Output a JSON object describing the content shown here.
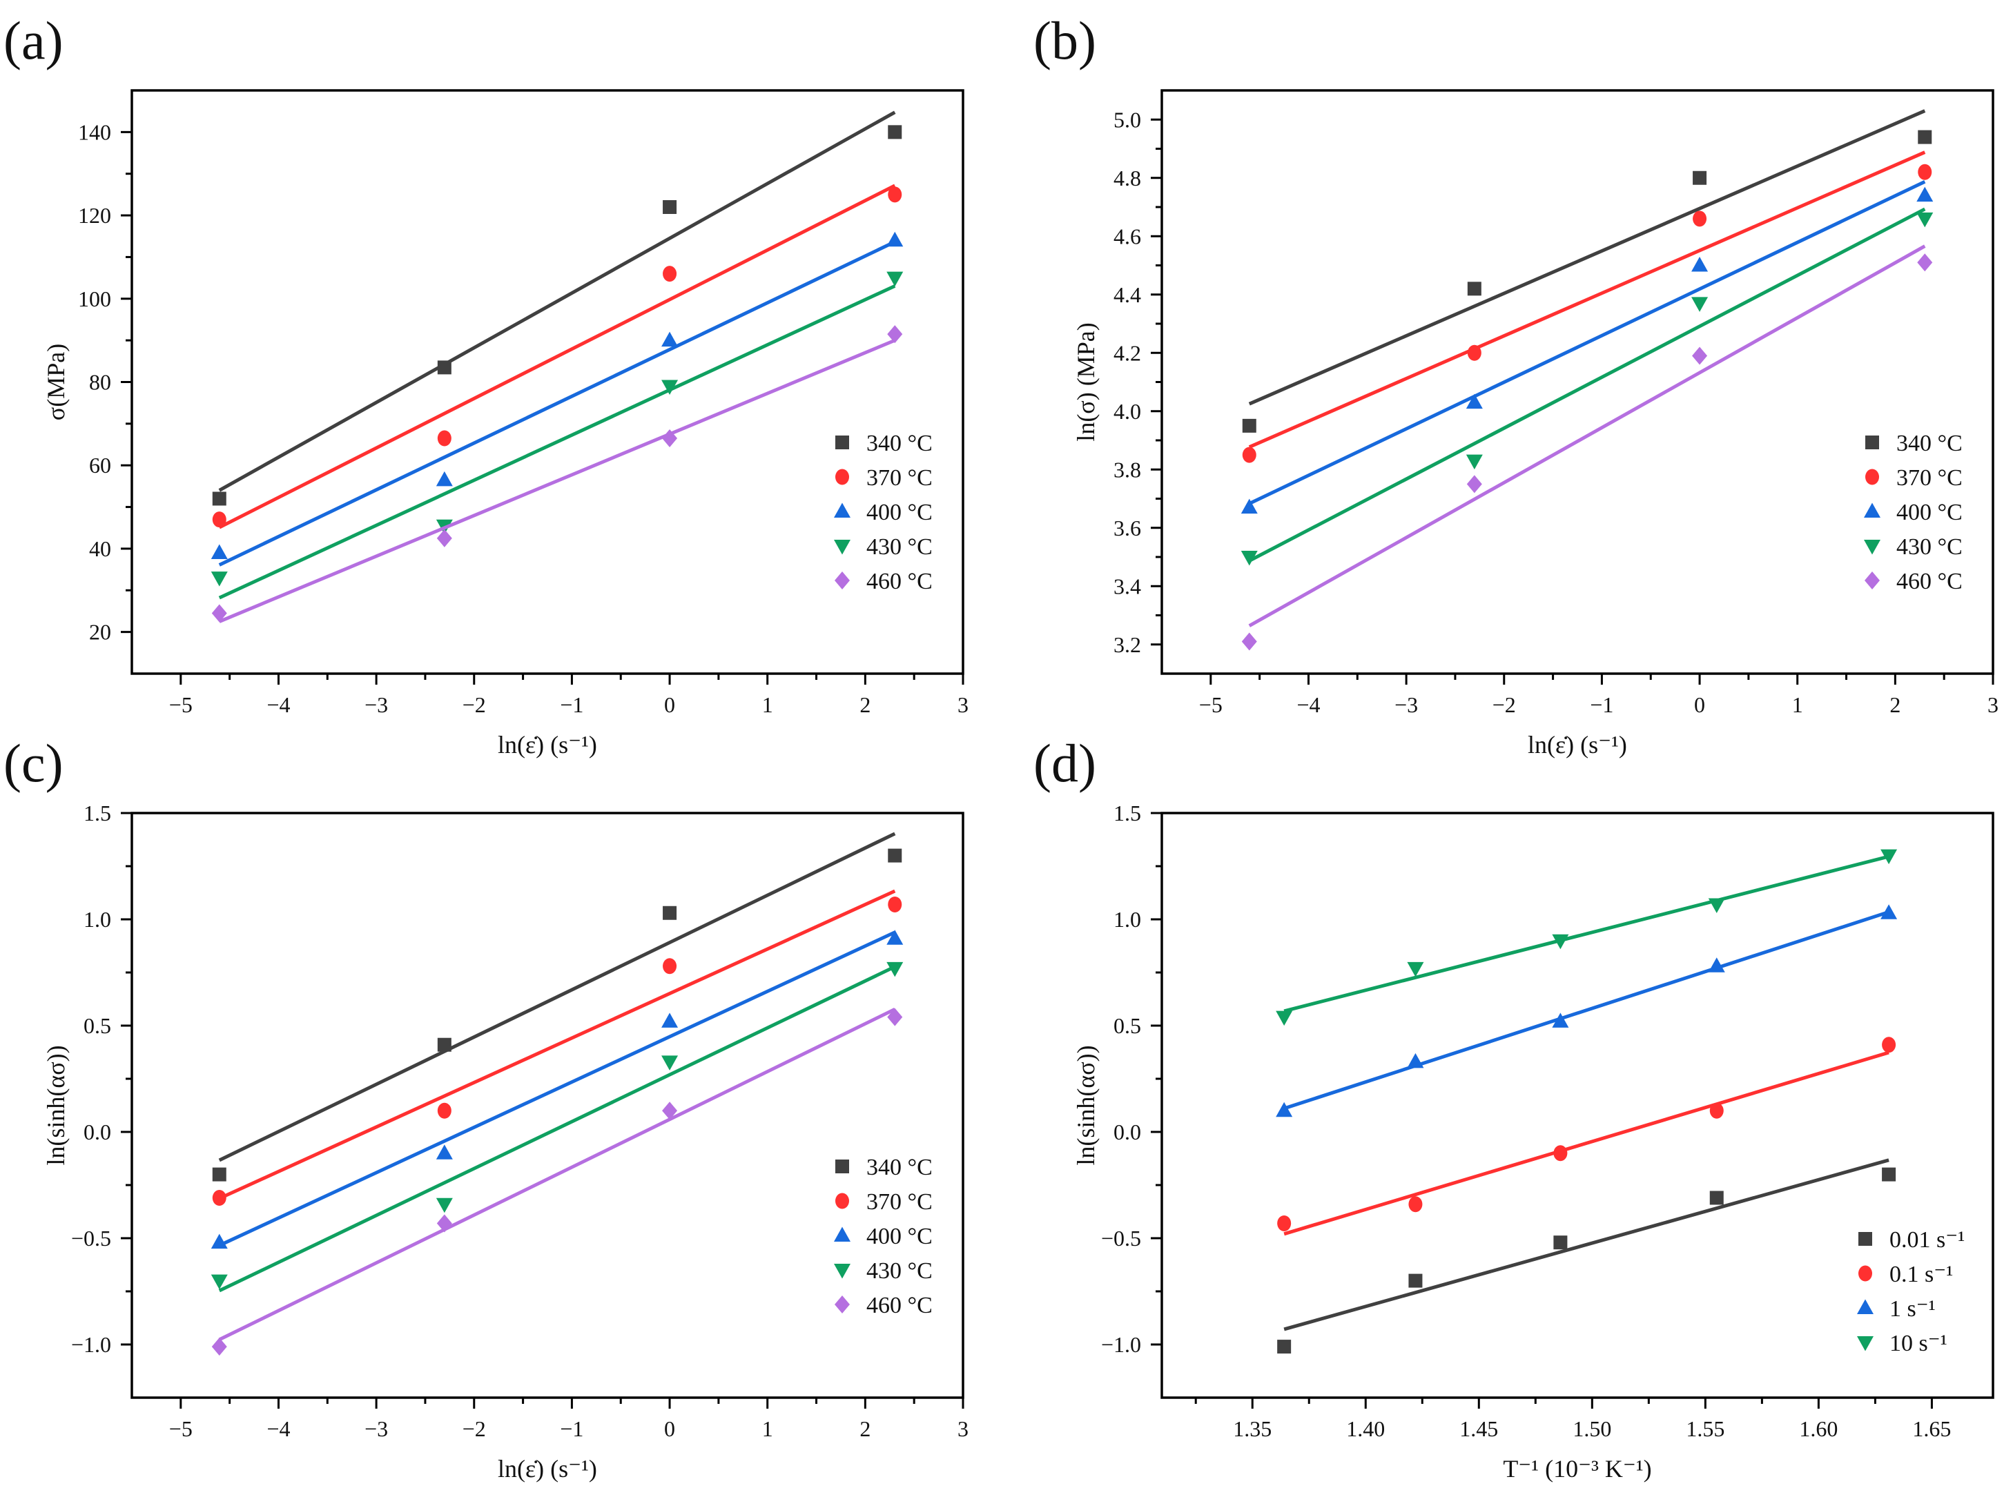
{
  "colors": [
    "#404040",
    "#ff3030",
    "#1769dc",
    "#0fa060",
    "#b56fe0"
  ],
  "chart_data": [
    {
      "panel_label": "(a)",
      "type": "scatter",
      "fit": "linear",
      "xlabel": "ln(ε̇) (s⁻¹)",
      "ylabel": "σ(MPa)",
      "xlim": [
        -5.5,
        3
      ],
      "ylim": [
        10,
        150
      ],
      "xticks": [
        -5,
        -4,
        -3,
        -2,
        -1,
        0,
        1,
        2,
        3
      ],
      "xtick_labels": [
        "−5",
        "−4",
        "−3",
        "−2",
        "−1",
        "0",
        "1",
        "2",
        "3"
      ],
      "yticks": [
        20,
        40,
        60,
        80,
        100,
        120,
        140
      ],
      "ytick_labels": [
        "20",
        "40",
        "60",
        "80",
        "100",
        "120",
        "140"
      ],
      "legend": "bottom-right",
      "x": [
        -4.605,
        -2.303,
        0,
        2.303
      ],
      "series": [
        {
          "name": "340 °C",
          "marker": "square",
          "values": [
            52,
            83.5,
            122,
            140
          ]
        },
        {
          "name": "370 °C",
          "marker": "circle",
          "values": [
            47,
            66.5,
            106,
            125
          ]
        },
        {
          "name": "400 °C",
          "marker": "triangle-up",
          "values": [
            39,
            56.5,
            90,
            114
          ]
        },
        {
          "name": "430 °C",
          "marker": "triangle-down",
          "values": [
            33,
            45.5,
            79,
            105
          ]
        },
        {
          "name": "460 °C",
          "marker": "diamond",
          "values": [
            24.5,
            42.5,
            66.5,
            91.5
          ]
        }
      ]
    },
    {
      "panel_label": "(b)",
      "type": "scatter",
      "fit": "linear",
      "xlabel": "ln(ε̇) (s⁻¹)",
      "ylabel": "ln(σ) (MPa)",
      "xlim": [
        -5.5,
        3
      ],
      "ylim": [
        3.1,
        5.1
      ],
      "xticks": [
        -5,
        -4,
        -3,
        -2,
        -1,
        0,
        1,
        2,
        3
      ],
      "xtick_labels": [
        "−5",
        "−4",
        "−3",
        "−2",
        "−1",
        "0",
        "1",
        "2",
        "3"
      ],
      "yticks": [
        3.2,
        3.4,
        3.6,
        3.8,
        4.0,
        4.2,
        4.4,
        4.6,
        4.8,
        5.0
      ],
      "ytick_labels": [
        "3.2",
        "3.4",
        "3.6",
        "3.8",
        "4.0",
        "4.2",
        "4.4",
        "4.6",
        "4.8",
        "5.0"
      ],
      "legend": "bottom-right",
      "x": [
        -4.605,
        -2.303,
        0,
        2.303
      ],
      "series": [
        {
          "name": "340 °C",
          "marker": "square",
          "values": [
            3.95,
            4.42,
            4.8,
            4.94
          ]
        },
        {
          "name": "370 °C",
          "marker": "circle",
          "values": [
            3.85,
            4.2,
            4.66,
            4.82
          ]
        },
        {
          "name": "400 °C",
          "marker": "triangle-up",
          "values": [
            3.67,
            4.03,
            4.5,
            4.74
          ]
        },
        {
          "name": "430 °C",
          "marker": "triangle-down",
          "values": [
            3.5,
            3.83,
            4.37,
            4.66
          ]
        },
        {
          "name": "460 °C",
          "marker": "diamond",
          "values": [
            3.21,
            3.75,
            4.19,
            4.51
          ]
        }
      ]
    },
    {
      "panel_label": "(c)",
      "type": "scatter",
      "fit": "linear",
      "xlabel": "ln(ε̇) (s⁻¹)",
      "ylabel": "ln(sinh(ασ))",
      "xlim": [
        -5.5,
        3
      ],
      "ylim": [
        -1.25,
        1.5
      ],
      "xticks": [
        -5,
        -4,
        -3,
        -2,
        -1,
        0,
        1,
        2,
        3
      ],
      "xtick_labels": [
        "−5",
        "−4",
        "−3",
        "−2",
        "−1",
        "0",
        "1",
        "2",
        "3"
      ],
      "yticks": [
        -1.0,
        -0.5,
        0.0,
        0.5,
        1.0,
        1.5
      ],
      "ytick_labels": [
        "−1.0",
        "−0.5",
        "0.0",
        "0.5",
        "1.0",
        "1.5"
      ],
      "legend": "bottom-right",
      "x": [
        -4.605,
        -2.303,
        0,
        2.303
      ],
      "series": [
        {
          "name": "340 °C",
          "marker": "square",
          "values": [
            -0.2,
            0.41,
            1.03,
            1.3
          ]
        },
        {
          "name": "370 °C",
          "marker": "circle",
          "values": [
            -0.31,
            0.1,
            0.78,
            1.07
          ]
        },
        {
          "name": "400 °C",
          "marker": "triangle-up",
          "values": [
            -0.52,
            -0.1,
            0.52,
            0.91
          ]
        },
        {
          "name": "430 °C",
          "marker": "triangle-down",
          "values": [
            -0.7,
            -0.34,
            0.33,
            0.77
          ]
        },
        {
          "name": "460 °C",
          "marker": "diamond",
          "values": [
            -1.01,
            -0.43,
            0.1,
            0.54
          ]
        }
      ]
    },
    {
      "panel_label": "(d)",
      "type": "scatter",
      "fit": "linear",
      "xlabel": "T⁻¹ (10⁻³ K⁻¹)",
      "ylabel": "ln(sinh(ασ))",
      "xlim": [
        1.31,
        1.677
      ],
      "ylim": [
        -1.25,
        1.5
      ],
      "xticks": [
        1.35,
        1.4,
        1.45,
        1.5,
        1.55,
        1.6,
        1.65
      ],
      "xtick_labels": [
        "1.35",
        "1.40",
        "1.45",
        "1.50",
        "1.55",
        "1.60",
        "1.65"
      ],
      "yticks": [
        -1.0,
        -0.5,
        0.0,
        0.5,
        1.0,
        1.5
      ],
      "ytick_labels": [
        "−1.0",
        "−0.5",
        "0.0",
        "0.5",
        "1.0",
        "1.5"
      ],
      "legend": "bottom-right",
      "x": [
        1.364,
        1.422,
        1.486,
        1.555,
        1.631
      ],
      "series": [
        {
          "name": "0.01 s⁻¹",
          "marker": "square",
          "values": [
            -1.01,
            -0.7,
            -0.52,
            -0.31,
            -0.2
          ]
        },
        {
          "name": "0.1 s⁻¹",
          "marker": "circle",
          "values": [
            -0.43,
            -0.34,
            -0.1,
            0.1,
            0.41
          ]
        },
        {
          "name": "1 s⁻¹",
          "marker": "triangle-up",
          "values": [
            0.1,
            0.33,
            0.52,
            0.78,
            1.03
          ]
        },
        {
          "name": "10 s⁻¹",
          "marker": "triangle-down",
          "values": [
            0.54,
            0.77,
            0.9,
            1.07,
            1.3
          ]
        }
      ]
    }
  ]
}
